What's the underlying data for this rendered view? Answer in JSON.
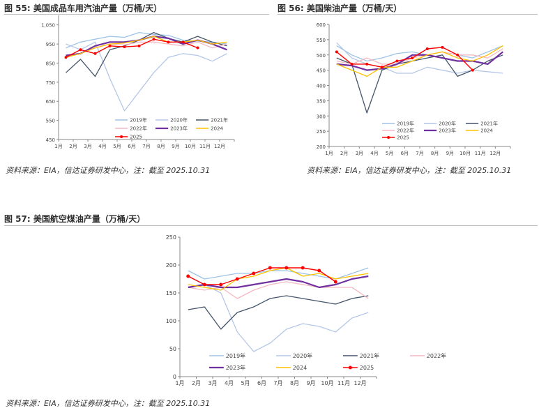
{
  "figures": {
    "f55": {
      "title": "图 55:  美国成品车用汽油产量（万桶/天）",
      "source": "资料来源：EIA，信达证券研发中心，注：截至 2025.10.31"
    },
    "f56": {
      "title": "图 56:  美国柴油产量（万桶/天）",
      "source": "资料来源：EIA，信达证券研发中心，注：截至 2025.10.31"
    },
    "f57": {
      "title": "图 57:  美国航空煤油产量（万桶/天）",
      "source": "资料来源：EIA，信达证券研发中心，注：截至 2025.10.31"
    }
  },
  "colors": {
    "2019年": "#9dc3e6",
    "2020年": "#b4c7e7",
    "2021年": "#44546a",
    "2022年": "#f4b8c0",
    "2023年": "#7030a0",
    "2024": "#ffc000",
    "2025": "#ff0000"
  },
  "chart_data": [
    {
      "type": "line",
      "id": "gasoline",
      "title": "美国成品车用汽油产量（万桶/天）",
      "x": [
        "1月",
        "2月",
        "3月",
        "4月",
        "5月",
        "6月",
        "7月",
        "8月",
        "9月",
        "10月",
        "11月",
        "12月"
      ],
      "ylim": [
        450,
        1100
      ],
      "yticks": [
        450,
        550,
        650,
        750,
        850,
        950,
        1050
      ],
      "ytick_labels": [
        "450",
        "550",
        "650",
        "750",
        "850",
        "950",
        "1,050"
      ],
      "legend": [
        "2019年",
        "2020年",
        "2021年",
        "2022年",
        "2023年",
        "2024",
        "2025"
      ],
      "series": [
        {
          "name": "2019年",
          "values": [
            930,
            960,
            975,
            990,
            985,
            1010,
            1000,
            995,
            970,
            965,
            960,
            950
          ]
        },
        {
          "name": "2020年",
          "values": [
            950,
            920,
            960,
            770,
            600,
            700,
            800,
            880,
            900,
            890,
            860,
            900
          ]
        },
        {
          "name": "2021年",
          "values": [
            800,
            870,
            780,
            920,
            940,
            970,
            1010,
            980,
            960,
            990,
            960,
            940
          ]
        },
        {
          "name": "2022年",
          "values": [
            880,
            900,
            930,
            950,
            945,
            960,
            960,
            950,
            940,
            960,
            930,
            950
          ]
        },
        {
          "name": "2023年",
          "values": [
            890,
            900,
            940,
            960,
            960,
            970,
            990,
            980,
            950,
            970,
            950,
            920
          ]
        },
        {
          "name": "2024",
          "values": [
            880,
            900,
            930,
            950,
            955,
            970,
            990,
            960,
            960,
            970,
            950,
            960
          ]
        },
        {
          "name": "2025",
          "values": [
            880,
            920,
            900,
            940,
            935,
            940,
            975,
            960,
            960,
            930,
            null,
            null
          ]
        }
      ]
    },
    {
      "type": "line",
      "id": "diesel",
      "title": "美国柴油产量（万桶/天）",
      "x": [
        "1月",
        "2月",
        "3月",
        "4月",
        "5月",
        "6月",
        "7月",
        "8月",
        "9月",
        "10月",
        "11月",
        "12月"
      ],
      "ylim": [
        200,
        600
      ],
      "yticks": [
        200,
        250,
        300,
        350,
        400,
        450,
        500,
        550,
        600
      ],
      "ytick_labels": [
        "200",
        "250",
        "300",
        "350",
        "400",
        "450",
        "500",
        "550",
        "600"
      ],
      "legend": [
        "2019年",
        "2020年",
        "2021年",
        "2022年",
        "2023年",
        "2024",
        "2025"
      ],
      "series": [
        {
          "name": "2019年",
          "values": [
            530,
            500,
            480,
            490,
            505,
            510,
            500,
            510,
            500,
            490,
            510,
            530
          ]
        },
        {
          "name": "2020年",
          "values": [
            540,
            490,
            470,
            460,
            440,
            440,
            460,
            450,
            440,
            450,
            445,
            440
          ]
        },
        {
          "name": "2021年",
          "values": [
            490,
            470,
            310,
            450,
            470,
            480,
            490,
            500,
            430,
            450,
            480,
            500
          ]
        },
        {
          "name": "2022年",
          "values": [
            480,
            470,
            490,
            470,
            470,
            490,
            500,
            510,
            500,
            500,
            490,
            520
          ]
        },
        {
          "name": "2023年",
          "values": [
            470,
            465,
            450,
            455,
            470,
            500,
            500,
            490,
            480,
            480,
            470,
            510
          ]
        },
        {
          "name": "2024",
          "values": [
            470,
            450,
            430,
            460,
            460,
            480,
            500,
            510,
            490,
            480,
            500,
            530
          ]
        },
        {
          "name": "2025",
          "values": [
            510,
            470,
            470,
            460,
            480,
            490,
            520,
            525,
            500,
            450,
            null,
            null
          ]
        }
      ]
    },
    {
      "type": "line",
      "id": "jetfuel",
      "title": "美国航空煤油产量（万桶/天）",
      "x": [
        "1月",
        "2月",
        "3月",
        "4月",
        "5月",
        "6月",
        "7月",
        "8月",
        "9月",
        "10月",
        "11月",
        "12月"
      ],
      "ylim": [
        0,
        250
      ],
      "yticks": [
        0,
        50,
        100,
        150,
        200,
        250
      ],
      "ytick_labels": [
        "0",
        "50",
        "100",
        "150",
        "200",
        "250"
      ],
      "legend": [
        "2019年",
        "2020年",
        "2021年",
        "2022年",
        "2023年",
        "2024",
        "2025"
      ],
      "series": [
        {
          "name": "2019年",
          "values": [
            190,
            175,
            180,
            185,
            185,
            190,
            190,
            185,
            180,
            175,
            185,
            195
          ]
        },
        {
          "name": "2020年",
          "values": [
            180,
            165,
            150,
            80,
            45,
            60,
            85,
            95,
            90,
            80,
            105,
            115
          ]
        },
        {
          "name": "2021年",
          "values": [
            120,
            125,
            85,
            115,
            125,
            140,
            145,
            140,
            135,
            130,
            140,
            145
          ]
        },
        {
          "name": "2022年",
          "values": [
            160,
            155,
            160,
            140,
            155,
            165,
            170,
            165,
            160,
            160,
            160,
            140
          ]
        },
        {
          "name": "2023年",
          "values": [
            160,
            165,
            160,
            160,
            165,
            170,
            175,
            170,
            160,
            165,
            175,
            180
          ]
        },
        {
          "name": "2024",
          "values": [
            165,
            160,
            155,
            175,
            180,
            190,
            195,
            180,
            185,
            175,
            180,
            185
          ]
        },
        {
          "name": "2025",
          "values": [
            180,
            165,
            165,
            175,
            185,
            195,
            195,
            195,
            190,
            170,
            null,
            null
          ]
        }
      ]
    }
  ]
}
